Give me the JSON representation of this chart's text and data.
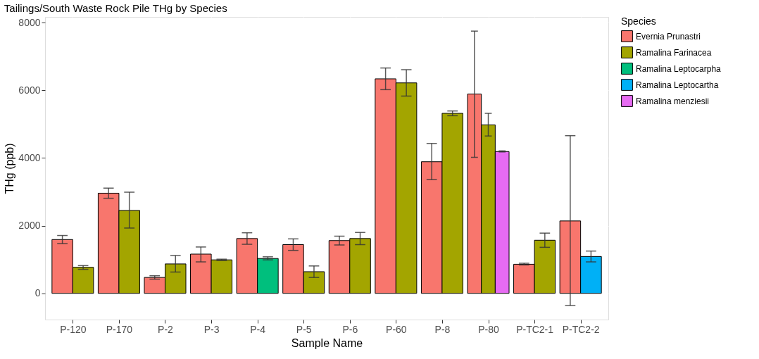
{
  "chart_data": {
    "type": "bar",
    "title": "Tailings/South Waste Rock Pile THg by Species",
    "xlabel": "Sample Name",
    "ylabel": "THg (ppb)",
    "legend_title": "Species",
    "categories": [
      "P-120",
      "P-170",
      "P-2",
      "P-3",
      "P-4",
      "P-5",
      "P-6",
      "P-60",
      "P-8",
      "P-80",
      "P-TC2-1",
      "P-TC2-2"
    ],
    "series": [
      {
        "name": "Evernia Prunastri",
        "color": "#f8766d",
        "values": [
          1590,
          2960,
          470,
          1160,
          1620,
          1440,
          1560,
          6340,
          3890,
          5890,
          860,
          2140
        ],
        "errors": [
          [
            1470,
            1710
          ],
          [
            2810,
            3110
          ],
          [
            420,
            520
          ],
          [
            930,
            1370
          ],
          [
            1450,
            1790
          ],
          [
            1270,
            1610
          ],
          [
            1430,
            1690
          ],
          [
            6020,
            6660
          ],
          [
            3360,
            4430
          ],
          [
            4020,
            7750
          ],
          [
            840,
            890
          ],
          [
            -360,
            4660
          ]
        ]
      },
      {
        "name": "Ramalina Farinacea",
        "color": "#a3a500",
        "values": [
          770,
          2450,
          870,
          990,
          null,
          640,
          1620,
          6220,
          5320,
          4980,
          1570,
          null
        ],
        "errors": [
          [
            710,
            820
          ],
          [
            1930,
            2990
          ],
          [
            630,
            1120
          ],
          [
            970,
            1010
          ],
          null,
          [
            470,
            810
          ],
          [
            1440,
            1800
          ],
          [
            5830,
            6610
          ],
          [
            5250,
            5390
          ],
          [
            4650,
            5320
          ],
          [
            1360,
            1780
          ],
          null
        ]
      },
      {
        "name": "Ramalina Leptocarpha",
        "color": "#00bf7d",
        "values": [
          null,
          null,
          null,
          null,
          1030,
          null,
          null,
          null,
          null,
          null,
          null,
          null
        ],
        "errors": [
          null,
          null,
          null,
          null,
          [
            990,
            1080
          ],
          null,
          null,
          null,
          null,
          null,
          null,
          null
        ]
      },
      {
        "name": "Ramalina Leptocartha",
        "color": "#00b0f6",
        "values": [
          null,
          null,
          null,
          null,
          null,
          null,
          null,
          null,
          null,
          null,
          null,
          1090
        ],
        "errors": [
          null,
          null,
          null,
          null,
          null,
          null,
          null,
          null,
          null,
          null,
          null,
          [
            930,
            1250
          ]
        ]
      },
      {
        "name": "Ramalina menziesii",
        "color": "#e76bf3",
        "values": [
          null,
          null,
          null,
          null,
          null,
          null,
          null,
          null,
          null,
          4190,
          null,
          null
        ],
        "errors": [
          null,
          null,
          null,
          null,
          null,
          null,
          null,
          null,
          null,
          [
            4180,
            4210
          ],
          null,
          null
        ]
      }
    ],
    "ylim": [
      -775,
      8170
    ],
    "yticks": [
      0,
      2000,
      4000,
      6000,
      8000
    ],
    "grid": true,
    "legend": "right"
  }
}
